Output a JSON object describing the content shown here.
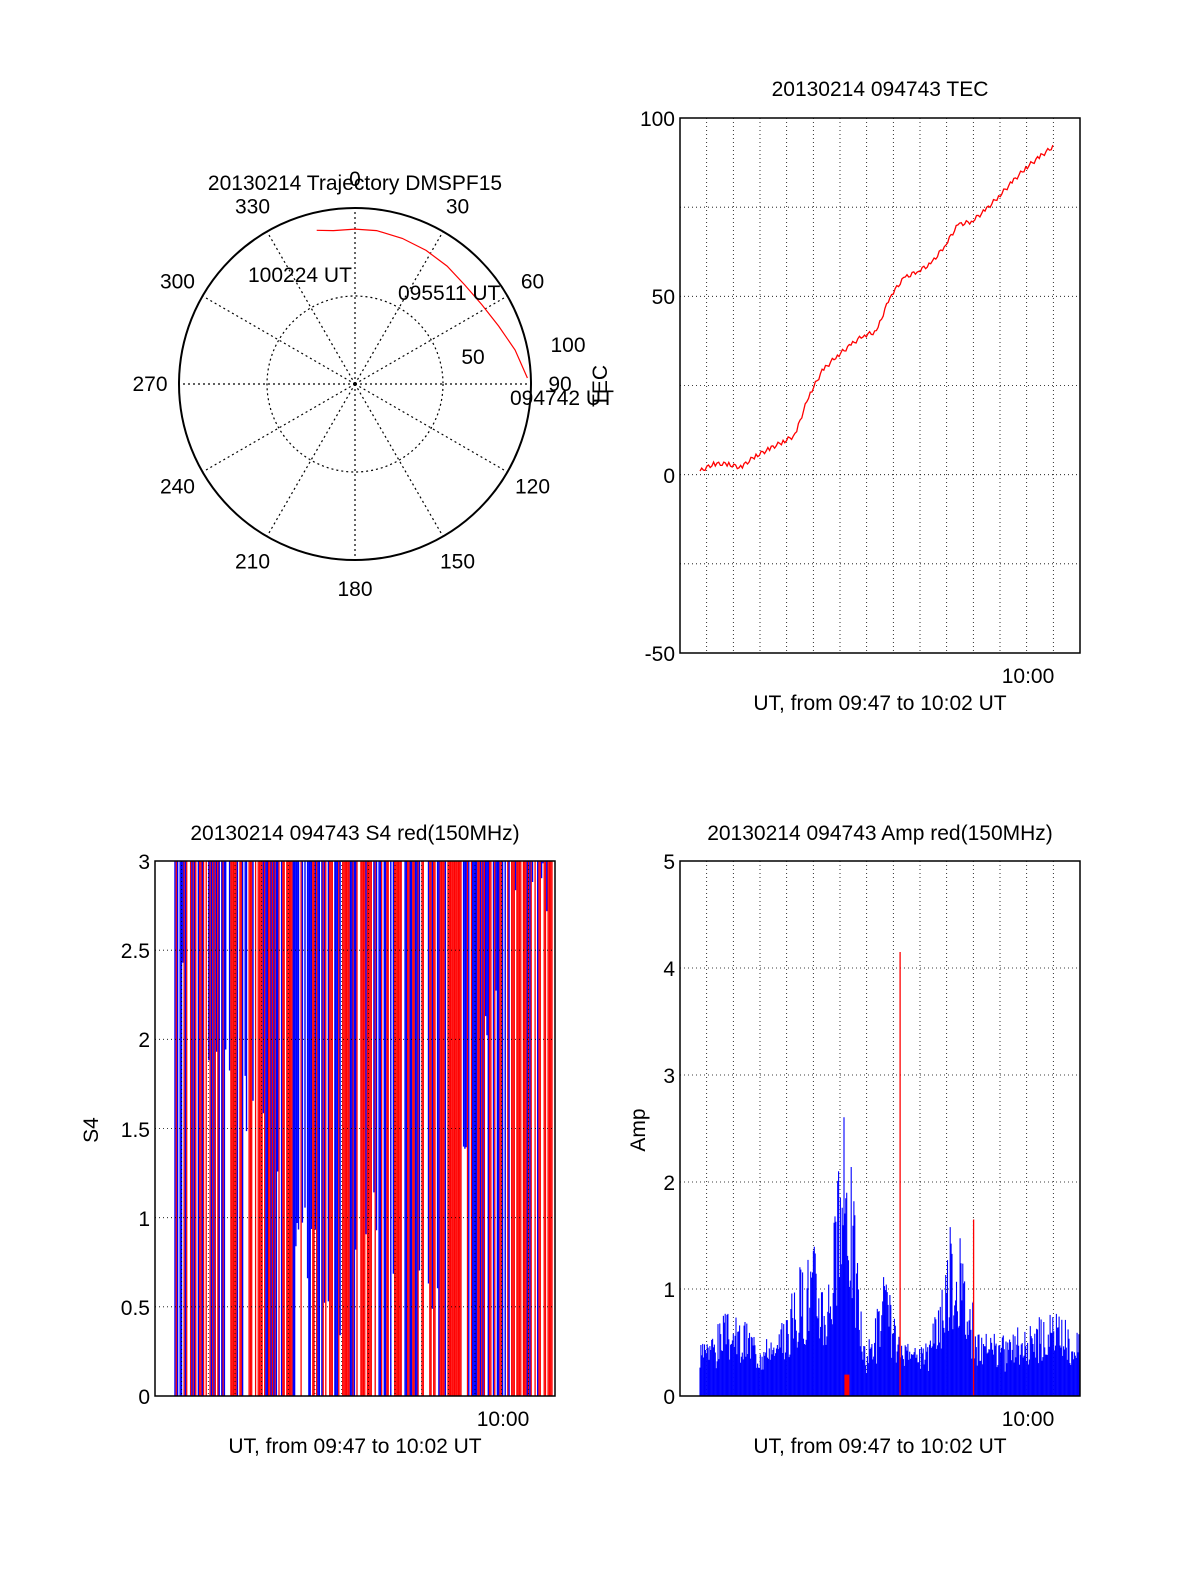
{
  "colors": {
    "red": "#ff0000",
    "blue": "#0000ff",
    "axis": "#000000",
    "grid": "#000000"
  },
  "polar": {
    "title": "20130214 Trajectory DMSPF15",
    "azimuth_labels": [
      "0",
      "30",
      "60",
      "90",
      "120",
      "150",
      "180",
      "210",
      "240",
      "270",
      "300",
      "330"
    ],
    "radial_ticks": [
      "50",
      "100"
    ],
    "radial_label": "TEC",
    "annotations": [
      "100224 UT",
      "095511 UT",
      "094742 UT"
    ],
    "chart_data": {
      "type": "polar",
      "track": [
        [
          98,
          88
        ],
        [
          93,
          78
        ],
        [
          88,
          68
        ],
        [
          85,
          58
        ],
        [
          84,
          48
        ],
        [
          85,
          38
        ],
        [
          86,
          28
        ],
        [
          87,
          18
        ],
        [
          88,
          8
        ],
        [
          88,
          0
        ],
        [
          88,
          -8
        ],
        [
          90,
          -14
        ]
      ],
      "track_units": [
        "elevation radial 0-100",
        "azimuth degrees"
      ]
    }
  },
  "tec": {
    "title": "20130214 094743 TEC",
    "ylabel": "",
    "xlabel": "UT, from 09:47 to 10:02 UT",
    "yticks": [
      "100",
      "50",
      "0",
      "-50"
    ],
    "xtick": "10:00",
    "chart_data": {
      "type": "line",
      "x_range": [
        "09:47",
        "10:02"
      ],
      "ylim": [
        -50,
        100
      ],
      "series": [
        {
          "values": [
            [
              0.0,
              1
            ],
            [
              0.5,
              3
            ],
            [
              1.0,
              3
            ],
            [
              1.5,
              2
            ],
            [
              2.0,
              5
            ],
            [
              2.5,
              7
            ],
            [
              3.0,
              9
            ],
            [
              3.5,
              11
            ],
            [
              4.0,
              22
            ],
            [
              4.5,
              29
            ],
            [
              5.0,
              33
            ],
            [
              5.5,
              36
            ],
            [
              6.0,
              39
            ],
            [
              6.5,
              40
            ],
            [
              7.0,
              50
            ],
            [
              7.5,
              55
            ],
            [
              8.0,
              57
            ],
            [
              8.5,
              59
            ],
            [
              9.0,
              64
            ],
            [
              9.5,
              70
            ],
            [
              10.0,
              71
            ],
            [
              10.5,
              74
            ],
            [
              11.0,
              78
            ],
            [
              11.5,
              82
            ],
            [
              12.0,
              86
            ],
            [
              12.5,
              89
            ],
            [
              13.0,
              92
            ]
          ]
        }
      ]
    }
  },
  "s4": {
    "title": "20130214 094743 S4 red(150MHz)",
    "ylabel": "S4",
    "xlabel": "UT, from 09:47 to 10:02 UT",
    "yticks": [
      "3",
      "2.5",
      "2",
      "1.5",
      "1",
      "0.5",
      "0"
    ],
    "xtick": "10:00",
    "chart_data": {
      "type": "line",
      "x_range": [
        "09:47",
        "10:02"
      ],
      "ylim": [
        0,
        3
      ],
      "series": [
        {
          "color": "red",
          "values": [
            [
              0.0,
              3
            ],
            [
              15.0,
              3
            ]
          ]
        },
        {
          "color": "blue",
          "values": [
            [
              0.0,
              2.7
            ],
            [
              1.5,
              1.9
            ],
            [
              3.0,
              1.6
            ],
            [
              4.0,
              1.3
            ],
            [
              5.0,
              0.9
            ],
            [
              6.0,
              0.6
            ],
            [
              6.5,
              0.35
            ],
            [
              8.0,
              1.1
            ],
            [
              9.0,
              0.7
            ],
            [
              10.0,
              0.6
            ],
            [
              11.0,
              1.0
            ],
            [
              12.0,
              2.0
            ],
            [
              13.0,
              2.6
            ],
            [
              14.0,
              2.8
            ],
            [
              15.0,
              2.8
            ]
          ]
        }
      ]
    }
  },
  "amp": {
    "title": "20130214 094743 Amp red(150MHz)",
    "ylabel": "Amp",
    "xlabel": "UT, from 09:47 to 10:02 UT",
    "yticks": [
      "5",
      "4",
      "3",
      "2",
      "1",
      "0"
    ],
    "xtick": "10:00",
    "chart_data": {
      "type": "bar",
      "x_range": [
        "09:47",
        "10:02"
      ],
      "ylim": [
        0,
        5
      ],
      "series": [
        {
          "color": "blue",
          "values": [
            [
              0.0,
              0.5
            ],
            [
              1.0,
              0.8
            ],
            [
              2.0,
              0.7
            ],
            [
              3.0,
              0.5
            ],
            [
              4.0,
              1.3
            ],
            [
              4.5,
              1.5
            ],
            [
              5.0,
              1.1
            ],
            [
              5.8,
              2.9
            ],
            [
              6.5,
              0.4
            ],
            [
              7.3,
              1.2
            ],
            [
              8.0,
              0.4
            ],
            [
              9.0,
              0.5
            ],
            [
              10.0,
              1.8
            ],
            [
              11.0,
              0.6
            ],
            [
              12.0,
              0.6
            ],
            [
              13.0,
              0.7
            ],
            [
              14.0,
              0.8
            ],
            [
              15.0,
              0.6
            ]
          ]
        },
        {
          "color": "red",
          "values": [
            [
              7.9,
              4.15
            ],
            [
              10.8,
              1.65
            ],
            [
              5.8,
              0.2
            ]
          ]
        }
      ]
    }
  }
}
